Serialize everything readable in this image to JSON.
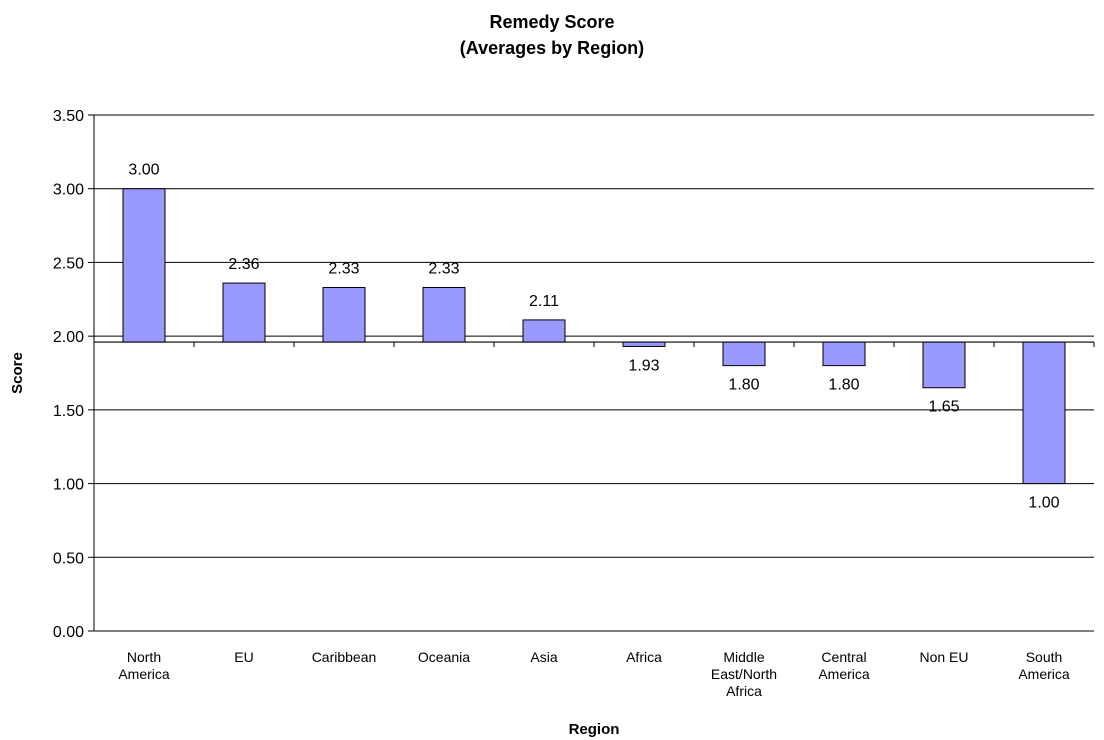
{
  "chart_data": {
    "type": "bar",
    "title_lines": [
      "Remedy Score",
      "(Averages by Region)"
    ],
    "xlabel": "Region",
    "ylabel": "Score",
    "ylim": [
      0,
      3.5
    ],
    "ytick_labels": [
      "0.00",
      "0.50",
      "1.00",
      "1.50",
      "2.00",
      "2.50",
      "3.00",
      "3.50"
    ],
    "baseline": 1.96,
    "grid": true,
    "legend": "none",
    "bar_color": "#9999ff",
    "categories": [
      [
        "North",
        "America"
      ],
      [
        "EU"
      ],
      [
        "Caribbean"
      ],
      [
        "Oceania"
      ],
      [
        "Asia"
      ],
      [
        "Africa"
      ],
      [
        "Middle",
        "East/North",
        "Africa"
      ],
      [
        "Central",
        "America"
      ],
      [
        "Non EU"
      ],
      [
        "South",
        "America"
      ]
    ],
    "values": [
      3.0,
      2.36,
      2.33,
      2.33,
      2.11,
      1.93,
      1.8,
      1.8,
      1.65,
      1.0
    ],
    "data_labels": [
      "3.00",
      "2.36",
      "2.33",
      "2.33",
      "2.11",
      "1.93",
      "1.80",
      "1.80",
      "1.65",
      "1.00"
    ]
  }
}
